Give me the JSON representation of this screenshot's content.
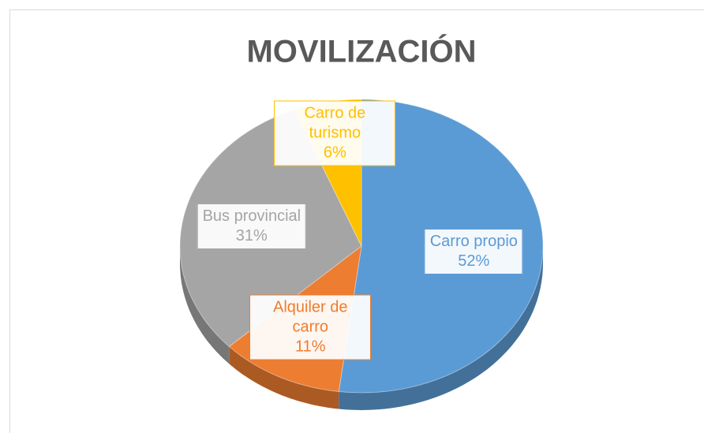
{
  "chart_data": {
    "type": "pie",
    "title": "MOVILIZACIÓN",
    "categories": [
      "Carro propio",
      "Alquiler de carro",
      "Bus provincial",
      "Carro de turismo"
    ],
    "values": [
      52,
      11,
      31,
      6
    ],
    "value_labels": [
      "52%",
      "11%",
      "31%",
      "6%"
    ],
    "colors": [
      "#5b9bd5",
      "#ed7d31",
      "#a5a5a5",
      "#ffc000"
    ]
  }
}
